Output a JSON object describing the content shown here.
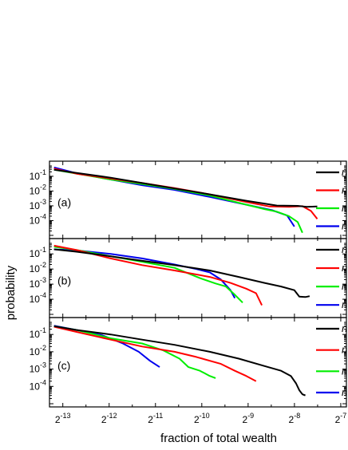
{
  "chart_data": {
    "type": "line",
    "ylabel": "probability",
    "xlabel": "fraction of total wealth",
    "xscale": "log2",
    "yscale": "log10",
    "xlim": [
      0.0001,
      0.0085
    ],
    "ylim": [
      1e-05,
      0.5
    ],
    "x_ticks": [
      {
        "value": 0.0001220703125,
        "base": "2",
        "exp": "-13"
      },
      {
        "value": 0.000244140625,
        "base": "2",
        "exp": "-12"
      },
      {
        "value": 0.00048828125,
        "base": "2",
        "exp": "-11"
      },
      {
        "value": 0.0009765625,
        "base": "2",
        "exp": "-10"
      },
      {
        "value": 0.001953125,
        "base": "2",
        "exp": "-9"
      },
      {
        "value": 0.00390625,
        "base": "2",
        "exp": "-8"
      },
      {
        "value": 0.0078125,
        "base": "2",
        "exp": "-7"
      }
    ],
    "y_ticks": [
      {
        "value": 0.1,
        "base": "10",
        "exp": "-1"
      },
      {
        "value": 0.01,
        "base": "10",
        "exp": "-2"
      },
      {
        "value": 0.001,
        "base": "10",
        "exp": "-3"
      },
      {
        "value": 0.0001,
        "base": "10",
        "exp": "-4"
      }
    ],
    "grid": false,
    "legend_position": "right",
    "panels": [
      {
        "label": "(a)",
        "legend": [
          "n",
          "n",
          "n",
          "n"
        ],
        "series": [
          {
            "color": "#000000",
            "points": [
              [
                0.000107,
                0.28
              ],
              [
                0.00015,
                0.17
              ],
              [
                0.00025,
                0.08
              ],
              [
                0.0004,
                0.035
              ],
              [
                0.00065,
                0.015
              ],
              [
                0.0011,
                0.006
              ],
              [
                0.0019,
                0.0022
              ],
              [
                0.003,
                0.00105
              ],
              [
                0.0041,
                0.001
              ],
              [
                0.0047,
                0.00085
              ],
              [
                0.0055,
                0.0009
              ]
            ]
          },
          {
            "color": "#ff0000",
            "points": [
              [
                0.000107,
                0.33
              ],
              [
                0.00015,
                0.15
              ],
              [
                0.00025,
                0.07
              ],
              [
                0.0004,
                0.035
              ],
              [
                0.00065,
                0.016
              ],
              [
                0.0011,
                0.006
              ],
              [
                0.0019,
                0.0018
              ],
              [
                0.0027,
                0.0009
              ],
              [
                0.0036,
                0.00085
              ],
              [
                0.0044,
                0.00095
              ],
              [
                0.005,
                0.00045
              ],
              [
                0.0055,
                0.00013
              ]
            ]
          },
          {
            "color": "#00ee00",
            "points": [
              [
                0.000107,
                0.28
              ],
              [
                0.00015,
                0.15
              ],
              [
                0.00025,
                0.06
              ],
              [
                0.0004,
                0.03
              ],
              [
                0.00065,
                0.014
              ],
              [
                0.0011,
                0.005
              ],
              [
                0.0019,
                0.0012
              ],
              [
                0.0025,
                0.0006
              ],
              [
                0.003,
                0.0004
              ],
              [
                0.0036,
                0.0002
              ],
              [
                0.0041,
                8e-05
              ],
              [
                0.0044,
                1.5e-05
              ]
            ]
          },
          {
            "color": "#0000ee",
            "points": [
              [
                0.000107,
                0.4
              ],
              [
                0.00015,
                0.16
              ],
              [
                0.00025,
                0.06
              ],
              [
                0.0004,
                0.025
              ],
              [
                0.00065,
                0.012
              ],
              [
                0.0011,
                0.004
              ],
              [
                0.0019,
                0.0012
              ],
              [
                0.0028,
                0.0005
              ],
              [
                0.0035,
                0.00022
              ],
              [
                0.0039,
                4e-05
              ]
            ]
          }
        ]
      },
      {
        "label": "(b)",
        "legend": [
          "n",
          "n",
          "n",
          "n"
        ],
        "series": [
          {
            "color": "#000000",
            "points": [
              [
                0.000107,
                0.2
              ],
              [
                0.00015,
                0.14
              ],
              [
                0.00025,
                0.07
              ],
              [
                0.0004,
                0.035
              ],
              [
                0.00065,
                0.018
              ],
              [
                0.0011,
                0.008
              ],
              [
                0.0017,
                0.003
              ],
              [
                0.0025,
                0.0012
              ],
              [
                0.0032,
                0.0007
              ],
              [
                0.0039,
                0.0004
              ],
              [
                0.0042,
                0.00015
              ],
              [
                0.0046,
                0.00014
              ],
              [
                0.0049,
                0.00016
              ]
            ]
          },
          {
            "color": "#ff0000",
            "points": [
              [
                0.000107,
                0.35
              ],
              [
                0.00015,
                0.18
              ],
              [
                0.00025,
                0.05
              ],
              [
                0.0004,
                0.018
              ],
              [
                0.00065,
                0.008
              ],
              [
                0.0011,
                0.003
              ],
              [
                0.0015,
                0.0012
              ],
              [
                0.0019,
                0.0005
              ],
              [
                0.0022,
                0.00025
              ],
              [
                0.0024,
                4e-05
              ]
            ]
          },
          {
            "color": "#00ee00",
            "points": [
              [
                0.000107,
                0.3
              ],
              [
                0.00015,
                0.18
              ],
              [
                0.00025,
                0.07
              ],
              [
                0.0004,
                0.03
              ],
              [
                0.00065,
                0.012
              ],
              [
                0.00095,
                0.0025
              ],
              [
                0.0012,
                0.0011
              ],
              [
                0.0014,
                0.0007
              ],
              [
                0.0016,
                0.0002
              ],
              [
                0.0018,
                6e-05
              ]
            ]
          },
          {
            "color": "#0000ee",
            "points": [
              [
                0.000107,
                0.2
              ],
              [
                0.00015,
                0.17
              ],
              [
                0.00025,
                0.1
              ],
              [
                0.0004,
                0.05
              ],
              [
                0.00065,
                0.02
              ],
              [
                0.0009,
                0.01
              ],
              [
                0.0011,
                0.006
              ],
              [
                0.0013,
                0.002
              ],
              [
                0.0015,
                0.0004
              ],
              [
                0.0016,
                0.00012
              ]
            ]
          }
        ]
      },
      {
        "label": "(c)",
        "legend": [
          "n",
          "n",
          "n",
          "n"
        ],
        "series": [
          {
            "color": "#000000",
            "points": [
              [
                0.000107,
                0.3
              ],
              [
                0.00015,
                0.18
              ],
              [
                0.00025,
                0.1
              ],
              [
                0.0004,
                0.05
              ],
              [
                0.00065,
                0.025
              ],
              [
                0.0011,
                0.01
              ],
              [
                0.0017,
                0.004
              ],
              [
                0.0025,
                0.0015
              ],
              [
                0.0032,
                0.0008
              ],
              [
                0.0037,
                0.0004
              ],
              [
                0.004,
                0.00015
              ],
              [
                0.0042,
                6e-05
              ],
              [
                0.0044,
                3.5e-05
              ],
              [
                0.0046,
                3e-05
              ]
            ]
          },
          {
            "color": "#ff0000",
            "points": [
              [
                0.000107,
                0.28
              ],
              [
                0.00015,
                0.14
              ],
              [
                0.00025,
                0.05
              ],
              [
                0.0004,
                0.02
              ],
              [
                0.00065,
                0.01
              ],
              [
                0.0009,
                0.005
              ],
              [
                0.0013,
                0.002
              ],
              [
                0.0016,
                0.0008
              ],
              [
                0.0019,
                0.0004
              ],
              [
                0.0022,
                0.0002
              ]
            ]
          },
          {
            "color": "#00ee00",
            "points": [
              [
                0.000107,
                0.3
              ],
              [
                0.00015,
                0.18
              ],
              [
                0.00025,
                0.06
              ],
              [
                0.0004,
                0.03
              ],
              [
                0.00055,
                0.012
              ],
              [
                0.0007,
                0.004
              ],
              [
                0.0008,
                0.0013
              ],
              [
                0.00095,
                0.0008
              ],
              [
                0.0011,
                0.0004
              ],
              [
                0.0012,
                0.0003
              ]
            ]
          },
          {
            "color": "#0000ee",
            "points": [
              [
                0.000107,
                0.32
              ],
              [
                0.00015,
                0.18
              ],
              [
                0.00022,
                0.09
              ],
              [
                0.0003,
                0.03
              ],
              [
                0.00038,
                0.01
              ],
              [
                0.00045,
                0.003
              ],
              [
                0.00052,
                0.0013
              ]
            ]
          }
        ]
      }
    ]
  }
}
